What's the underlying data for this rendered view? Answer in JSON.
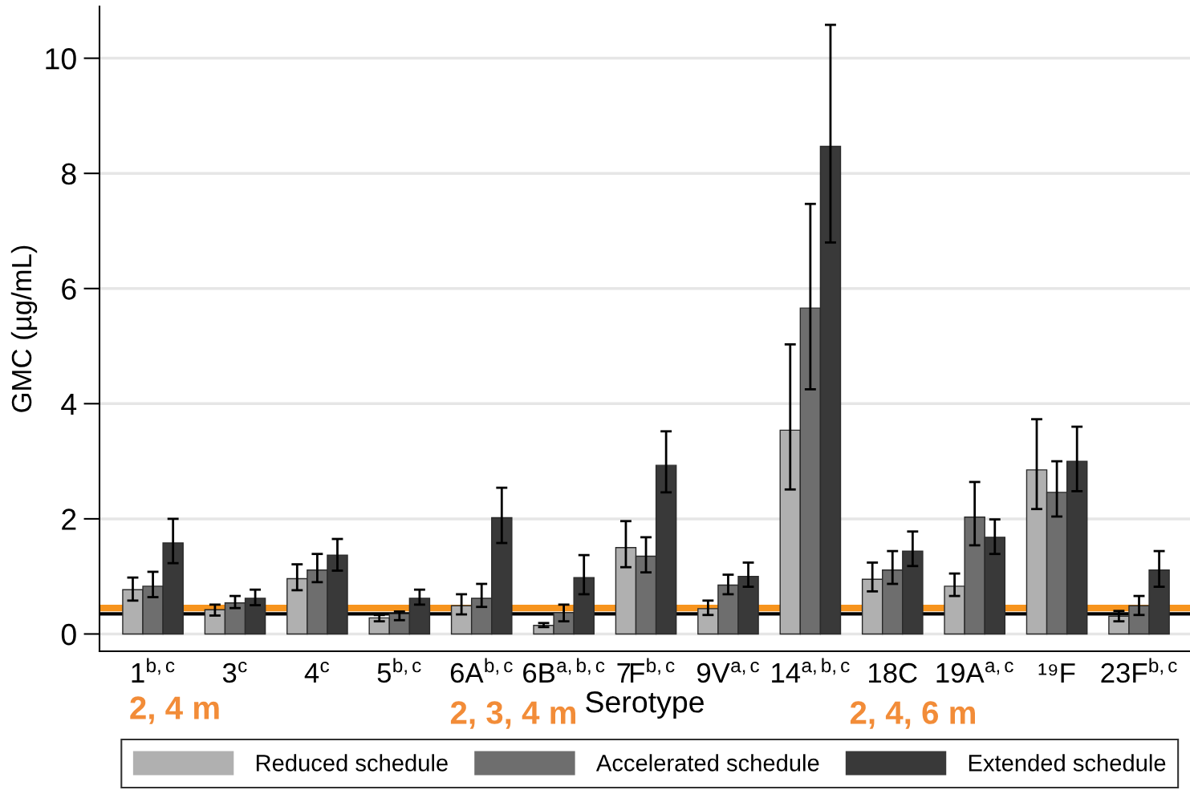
{
  "chart_data": {
    "type": "bar",
    "xlabel": "Serotype",
    "ylabel": "GMC (µg/mL)",
    "categories": [
      "1$^{b,c}$",
      "3$^{c}$",
      "4$^{c}$",
      "5$^{b,c}$",
      "6A$^{b,c}$",
      "6B$^{a,b,c}$",
      "7F$^{b,c}$",
      "9V$^{a,c}$",
      "14$^{a,b,c}$",
      "18C",
      "19A$^{a,c}$",
      "¹⁹F",
      "23F$^{b,c}$"
    ],
    "series": [
      {
        "name": "Reduced schedule",
        "color": "#b0b0b0",
        "values": [
          0.77,
          0.42,
          0.96,
          0.28,
          0.49,
          0.15,
          1.5,
          0.44,
          3.54,
          0.95,
          0.83,
          2.85,
          0.31
        ],
        "errors": [
          [
            0.58,
            0.98
          ],
          [
            0.32,
            0.51
          ],
          [
            0.76,
            1.21
          ],
          [
            0.22,
            0.33
          ],
          [
            0.34,
            0.69
          ],
          [
            0.12,
            0.19
          ],
          [
            1.16,
            1.96
          ],
          [
            0.33,
            0.58
          ],
          [
            2.51,
            5.03
          ],
          [
            0.74,
            1.24
          ],
          [
            0.66,
            1.05
          ],
          [
            2.17,
            3.73
          ],
          [
            0.22,
            0.4
          ]
        ]
      },
      {
        "name": "Accelerated schedule",
        "color": "#6e6e6e",
        "values": [
          0.83,
          0.54,
          1.11,
          0.35,
          0.62,
          0.37,
          1.35,
          0.85,
          5.66,
          1.11,
          2.03,
          2.46,
          0.49
        ],
        "errors": [
          [
            0.64,
            1.08
          ],
          [
            0.45,
            0.66
          ],
          [
            0.9,
            1.39
          ],
          [
            0.24,
            0.39
          ],
          [
            0.47,
            0.87
          ],
          [
            0.22,
            0.51
          ],
          [
            1.07,
            1.68
          ],
          [
            0.69,
            1.03
          ],
          [
            4.25,
            7.47
          ],
          [
            0.87,
            1.44
          ],
          [
            1.54,
            2.64
          ],
          [
            2.04,
            3.0
          ],
          [
            0.33,
            0.66
          ]
        ]
      },
      {
        "name": "Extended schedule",
        "color": "#393939",
        "values": [
          1.58,
          0.62,
          1.37,
          0.62,
          2.02,
          0.98,
          2.93,
          1.0,
          8.47,
          1.44,
          1.68,
          3.0,
          1.11
        ],
        "errors": [
          [
            1.23,
            2.0
          ],
          [
            0.5,
            0.77
          ],
          [
            1.1,
            1.65
          ],
          [
            0.51,
            0.77
          ],
          [
            1.58,
            2.54
          ],
          [
            0.69,
            1.37
          ],
          [
            2.46,
            3.52
          ],
          [
            0.82,
            1.24
          ],
          [
            6.8,
            10.58
          ],
          [
            1.18,
            1.78
          ],
          [
            1.39,
            1.99
          ],
          [
            2.48,
            3.6
          ],
          [
            0.82,
            1.44
          ]
        ]
      }
    ],
    "ylim": [
      -0.3,
      10.9
    ],
    "yticks": [
      0,
      2,
      4,
      6,
      8,
      10
    ],
    "grid": "y",
    "legend": "bottom",
    "ref_lines": [
      {
        "axis": "y",
        "value": 0.35,
        "color": "#000000"
      },
      {
        "axis": "y",
        "value": 0.45,
        "color": "#f7941d"
      }
    ],
    "annotations": [
      "2, 4 m",
      "2, 3, 4 m",
      "2, 4, 6 m"
    ]
  }
}
